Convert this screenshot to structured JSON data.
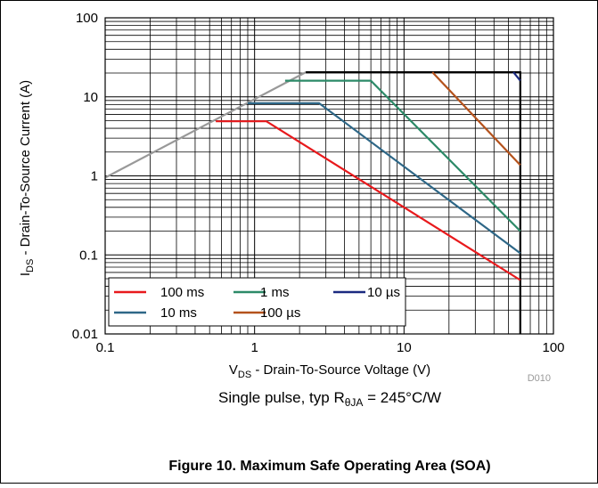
{
  "chart_data": {
    "type": "line",
    "title": "Figure 10. Maximum Safe Operating Area (SOA)",
    "subtitle": [
      "Single pulse, typ R",
      "θJA",
      " = 245°C/W"
    ],
    "xlabel": [
      "V",
      "DS",
      " - Drain-To-Source Voltage (V)"
    ],
    "ylabel": [
      "I",
      "DS",
      " - Drain-To-Source Current (A)"
    ],
    "figure_id": "D010",
    "xscale": "log",
    "yscale": "log",
    "xlim": [
      0.1,
      100
    ],
    "ylim": [
      0.01,
      100
    ],
    "xticks": [
      0.1,
      1,
      10,
      100
    ],
    "yticks": [
      0.01,
      0.1,
      1,
      10,
      100
    ],
    "grid": true,
    "boundaries": [
      {
        "color": "#999999",
        "x": [
          0.1,
          2.2
        ],
        "values": [
          0.95,
          20.5
        ]
      },
      {
        "color": "#000000",
        "x": [
          2.2,
          60,
          60
        ],
        "values": [
          20.5,
          20.5,
          0.01
        ]
      }
    ],
    "series": [
      {
        "name": "100 ms",
        "color": "#e8191c",
        "x": [
          0.55,
          1.2,
          60
        ],
        "values": [
          4.9,
          4.9,
          0.048
        ]
      },
      {
        "name": "10 ms",
        "color": "#2e6787",
        "x": [
          0.9,
          2.7,
          60
        ],
        "values": [
          8.3,
          8.3,
          0.105
        ]
      },
      {
        "name": "1 ms",
        "color": "#2c8a68",
        "x": [
          1.6,
          6,
          60
        ],
        "values": [
          16,
          16,
          0.2
        ]
      },
      {
        "name": "100 µs",
        "color": "#b4521c",
        "x": [
          15.5,
          60
        ],
        "values": [
          20.5,
          1.37
        ]
      },
      {
        "name": "10 µs",
        "color": "#1b2a80",
        "x": [
          54,
          60
        ],
        "values": [
          20.5,
          16
        ]
      }
    ]
  }
}
